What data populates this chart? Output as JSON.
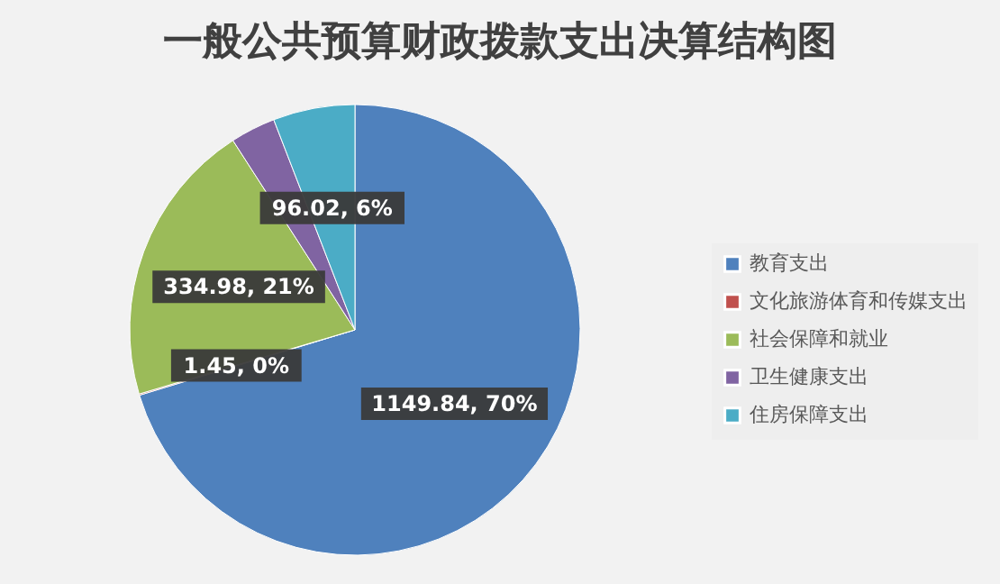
{
  "chart_data": {
    "type": "pie",
    "title": "一般公共预算财政拨款支出决算结构图",
    "categories": [
      "教育支出",
      "文化旅游体育和传媒支出",
      "社会保障和就业",
      "卫生健康支出",
      "住房保障支出"
    ],
    "values": [
      1149.84,
      1.45,
      334.98,
      53,
      96.02
    ],
    "colors": [
      "#4f81bd",
      "#c0504d",
      "#9bbb59",
      "#8064a2",
      "#4bacc6"
    ],
    "value_labels": [
      "1149.84, 70%",
      "1.45, 0%",
      "334.98, 21%",
      null,
      "96.02, 6%"
    ],
    "legend": "right"
  }
}
